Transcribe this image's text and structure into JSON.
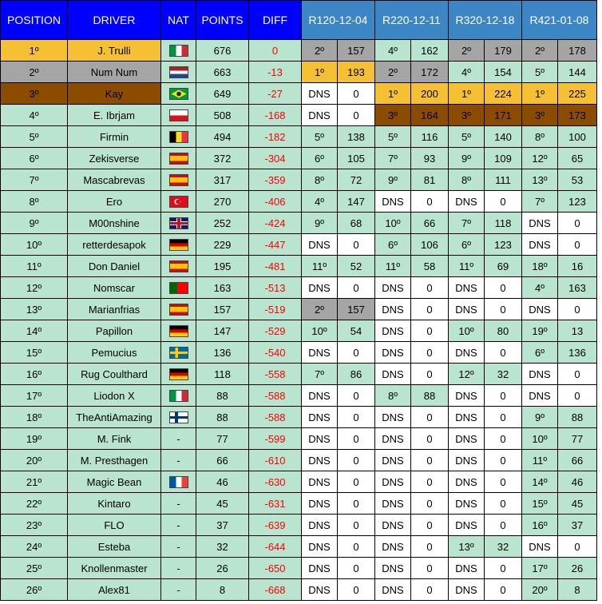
{
  "headers": {
    "position": "POSITION",
    "driver": "DRIVER",
    "nat": "NAT",
    "points": "POINTS",
    "diff": "DIFF",
    "races": [
      "R120-12-04",
      "R220-12-11",
      "R320-12-18",
      "R421-01-08"
    ]
  },
  "colors": {
    "header_main": "#0000ff",
    "header_race": "#3d86c6",
    "row_default": "#b9e4cf",
    "gold": "#f6c035",
    "silver": "#a5a5a5",
    "bronze": "#8b4c00",
    "dns": "#ffffff",
    "diff_text": "#ff0000"
  },
  "rows": [
    {
      "position": "1º",
      "driver": "J. Trulli",
      "nat": "italy-flag-icon",
      "points": "676",
      "diff": "0",
      "row_class": "gold",
      "races": [
        [
          "2º",
          "157",
          "silver"
        ],
        [
          "4º",
          "162",
          "default"
        ],
        [
          "2º",
          "179",
          "silver"
        ],
        [
          "2º",
          "178",
          "silver"
        ]
      ]
    },
    {
      "position": "2º",
      "driver": "Num Num",
      "nat": "netherlands-flag-icon",
      "points": "663",
      "diff": "-13",
      "row_class": "silver",
      "races": [
        [
          "1º",
          "193",
          "gold"
        ],
        [
          "2º",
          "172",
          "silver"
        ],
        [
          "4º",
          "154",
          "default"
        ],
        [
          "5º",
          "144",
          "default"
        ]
      ]
    },
    {
      "position": "3º",
      "driver": "Kay",
      "nat": "brazil-flag-icon",
      "points": "649",
      "diff": "-27",
      "row_class": "bronze",
      "races": [
        [
          "DNS",
          "0",
          "dns"
        ],
        [
          "1º",
          "200",
          "gold"
        ],
        [
          "1º",
          "224",
          "gold"
        ],
        [
          "1º",
          "225",
          "gold"
        ]
      ]
    },
    {
      "position": "4º",
      "driver": "E. Ibrjam",
      "nat": "czech-flag-icon",
      "points": "508",
      "diff": "-168",
      "row_class": "default",
      "races": [
        [
          "DNS",
          "0",
          "dns"
        ],
        [
          "3º",
          "164",
          "bronze"
        ],
        [
          "3º",
          "171",
          "bronze"
        ],
        [
          "3º",
          "173",
          "bronze"
        ]
      ]
    },
    {
      "position": "5º",
      "driver": "Firmin",
      "nat": "belgium-flag-icon",
      "points": "494",
      "diff": "-182",
      "row_class": "default",
      "races": [
        [
          "5º",
          "138",
          "default"
        ],
        [
          "5º",
          "116",
          "default"
        ],
        [
          "5º",
          "140",
          "default"
        ],
        [
          "8º",
          "100",
          "default"
        ]
      ]
    },
    {
      "position": "6º",
      "driver": "Zekisverse",
      "nat": "spain-flag-icon",
      "points": "372",
      "diff": "-304",
      "row_class": "default",
      "races": [
        [
          "6º",
          "105",
          "default"
        ],
        [
          "7º",
          "93",
          "default"
        ],
        [
          "9º",
          "109",
          "default"
        ],
        [
          "12º",
          "65",
          "default"
        ]
      ]
    },
    {
      "position": "7º",
      "driver": "Mascabrevas",
      "nat": "spain-flag-icon",
      "points": "317",
      "diff": "-359",
      "row_class": "default",
      "races": [
        [
          "8º",
          "72",
          "default"
        ],
        [
          "9º",
          "81",
          "default"
        ],
        [
          "8º",
          "111",
          "default"
        ],
        [
          "13º",
          "53",
          "default"
        ]
      ]
    },
    {
      "position": "8º",
      "driver": "Ero",
      "nat": "turkey-flag-icon",
      "points": "270",
      "diff": "-406",
      "row_class": "default",
      "races": [
        [
          "4º",
          "147",
          "default"
        ],
        [
          "DNS",
          "0",
          "dns"
        ],
        [
          "DNS",
          "0",
          "dns"
        ],
        [
          "7º",
          "123",
          "default"
        ]
      ]
    },
    {
      "position": "9º",
      "driver": "M00nshine",
      "nat": "uk-flag-icon",
      "points": "252",
      "diff": "-424",
      "row_class": "default",
      "races": [
        [
          "9º",
          "68",
          "default"
        ],
        [
          "10º",
          "66",
          "default"
        ],
        [
          "7º",
          "118",
          "default"
        ],
        [
          "DNS",
          "0",
          "dns"
        ]
      ]
    },
    {
      "position": "10º",
      "driver": "retterdesapok",
      "nat": "germany-flag-icon",
      "points": "229",
      "diff": "-447",
      "row_class": "default",
      "races": [
        [
          "DNS",
          "0",
          "dns"
        ],
        [
          "6º",
          "106",
          "default"
        ],
        [
          "6º",
          "123",
          "default"
        ],
        [
          "DNS",
          "0",
          "dns"
        ]
      ]
    },
    {
      "position": "11º",
      "driver": "Don Daniel",
      "nat": "spain-flag-icon",
      "points": "195",
      "diff": "-481",
      "row_class": "default",
      "races": [
        [
          "11º",
          "52",
          "default"
        ],
        [
          "11º",
          "58",
          "default"
        ],
        [
          "11º",
          "69",
          "default"
        ],
        [
          "18º",
          "16",
          "default"
        ]
      ]
    },
    {
      "position": "12º",
      "driver": "Nomscar",
      "nat": "portugal-flag-icon",
      "points": "163",
      "diff": "-513",
      "row_class": "default",
      "races": [
        [
          "DNS",
          "0",
          "dns"
        ],
        [
          "DNS",
          "0",
          "dns"
        ],
        [
          "DNS",
          "0",
          "dns"
        ],
        [
          "4º",
          "163",
          "default"
        ]
      ]
    },
    {
      "position": "13º",
      "driver": "Marianfrias",
      "nat": "spain-flag-icon",
      "points": "157",
      "diff": "-519",
      "row_class": "default",
      "races": [
        [
          "2º",
          "157",
          "silver"
        ],
        [
          "DNS",
          "0",
          "dns"
        ],
        [
          "DNS",
          "0",
          "dns"
        ],
        [
          "DNS",
          "0",
          "dns"
        ]
      ]
    },
    {
      "position": "14º",
      "driver": "Papillon",
      "nat": "germany-flag-icon",
      "points": "147",
      "diff": "-529",
      "row_class": "default",
      "races": [
        [
          "10º",
          "54",
          "default"
        ],
        [
          "DNS",
          "0",
          "dns"
        ],
        [
          "10º",
          "80",
          "default"
        ],
        [
          "19º",
          "13",
          "default"
        ]
      ]
    },
    {
      "position": "15º",
      "driver": "Pemucius",
      "nat": "sweden-flag-icon",
      "points": "136",
      "diff": "-540",
      "row_class": "default",
      "races": [
        [
          "DNS",
          "0",
          "dns"
        ],
        [
          "DNS",
          "0",
          "dns"
        ],
        [
          "DNS",
          "0",
          "dns"
        ],
        [
          "6º",
          "136",
          "default"
        ]
      ]
    },
    {
      "position": "16º",
      "driver": "Rug Coulthard",
      "nat": "germany-flag-icon",
      "points": "118",
      "diff": "-558",
      "row_class": "default",
      "races": [
        [
          "7º",
          "86",
          "default"
        ],
        [
          "DNS",
          "0",
          "dns"
        ],
        [
          "12º",
          "32",
          "default"
        ],
        [
          "DNS",
          "0",
          "dns"
        ]
      ]
    },
    {
      "position": "17º",
      "driver": "Liodon X",
      "nat": "italy-flag-icon",
      "points": "88",
      "diff": "-588",
      "row_class": "default",
      "races": [
        [
          "DNS",
          "0",
          "dns"
        ],
        [
          "8º",
          "88",
          "default"
        ],
        [
          "DNS",
          "0",
          "dns"
        ],
        [
          "DNS",
          "0",
          "dns"
        ]
      ]
    },
    {
      "position": "18º",
      "driver": "TheAntiAmazing",
      "nat": "finland-flag-icon",
      "points": "88",
      "diff": "-588",
      "row_class": "default",
      "races": [
        [
          "DNS",
          "0",
          "dns"
        ],
        [
          "DNS",
          "0",
          "dns"
        ],
        [
          "DNS",
          "0",
          "dns"
        ],
        [
          "9º",
          "88",
          "default"
        ]
      ]
    },
    {
      "position": "19º",
      "driver": "M. Fink",
      "nat": "-",
      "points": "77",
      "diff": "-599",
      "row_class": "default",
      "races": [
        [
          "DNS",
          "0",
          "dns"
        ],
        [
          "DNS",
          "0",
          "dns"
        ],
        [
          "DNS",
          "0",
          "dns"
        ],
        [
          "10º",
          "77",
          "default"
        ]
      ]
    },
    {
      "position": "20º",
      "driver": "M. Presthagen",
      "nat": "-",
      "points": "66",
      "diff": "-610",
      "row_class": "default",
      "races": [
        [
          "DNS",
          "0",
          "dns"
        ],
        [
          "DNS",
          "0",
          "dns"
        ],
        [
          "DNS",
          "0",
          "dns"
        ],
        [
          "11º",
          "66",
          "default"
        ]
      ]
    },
    {
      "position": "21º",
      "driver": "Magic Bean",
      "nat": "france-flag-icon",
      "points": "46",
      "diff": "-630",
      "row_class": "default",
      "races": [
        [
          "DNS",
          "0",
          "dns"
        ],
        [
          "DNS",
          "0",
          "dns"
        ],
        [
          "DNS",
          "0",
          "dns"
        ],
        [
          "14º",
          "46",
          "default"
        ]
      ]
    },
    {
      "position": "22º",
      "driver": "Kintaro",
      "nat": "-",
      "points": "45",
      "diff": "-631",
      "row_class": "default",
      "races": [
        [
          "DNS",
          "0",
          "dns"
        ],
        [
          "DNS",
          "0",
          "dns"
        ],
        [
          "DNS",
          "0",
          "dns"
        ],
        [
          "15º",
          "45",
          "default"
        ]
      ]
    },
    {
      "position": "23º",
      "driver": "FLO",
      "nat": "-",
      "points": "37",
      "diff": "-639",
      "row_class": "default",
      "races": [
        [
          "DNS",
          "0",
          "dns"
        ],
        [
          "DNS",
          "0",
          "dns"
        ],
        [
          "DNS",
          "0",
          "dns"
        ],
        [
          "16º",
          "37",
          "default"
        ]
      ]
    },
    {
      "position": "24º",
      "driver": "Esteba",
      "nat": "-",
      "points": "32",
      "diff": "-644",
      "row_class": "default",
      "races": [
        [
          "DNS",
          "0",
          "dns"
        ],
        [
          "DNS",
          "0",
          "dns"
        ],
        [
          "13º",
          "32",
          "default"
        ],
        [
          "DNS",
          "0",
          "dns"
        ]
      ]
    },
    {
      "position": "25º",
      "driver": "Knollenmaster",
      "nat": "-",
      "points": "26",
      "diff": "-650",
      "row_class": "default",
      "races": [
        [
          "DNS",
          "0",
          "dns"
        ],
        [
          "DNS",
          "0",
          "dns"
        ],
        [
          "DNS",
          "0",
          "dns"
        ],
        [
          "17º",
          "26",
          "default"
        ]
      ]
    },
    {
      "position": "26º",
      "driver": "Alex81",
      "nat": "-",
      "points": "8",
      "diff": "-668",
      "row_class": "default",
      "races": [
        [
          "DNS",
          "0",
          "dns"
        ],
        [
          "DNS",
          "0",
          "dns"
        ],
        [
          "DNS",
          "0",
          "dns"
        ],
        [
          "20º",
          "8",
          "default"
        ]
      ]
    }
  ]
}
